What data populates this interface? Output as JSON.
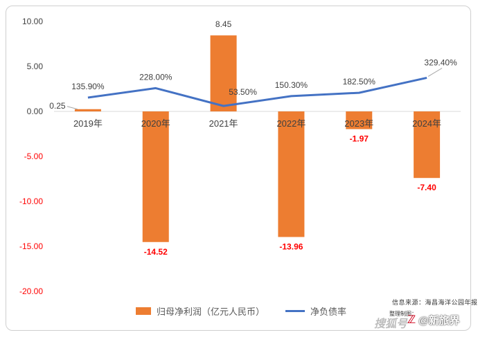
{
  "chart_data": {
    "type": "bar",
    "categories": [
      "2019年",
      "2020年",
      "2021年",
      "2022年",
      "2023年",
      "2024年"
    ],
    "ylim": [
      -20,
      10
    ],
    "yticks": [
      "10.00",
      "5.00",
      "0.00",
      "-5.00",
      "-10.00",
      "-15.00",
      "-20.00"
    ],
    "series": [
      {
        "name": "归母净利润（亿元人民币）",
        "type": "bar",
        "color": "#ED7D31",
        "values": [
          0.25,
          -14.52,
          8.45,
          -13.96,
          -1.97,
          -7.4
        ],
        "labels": [
          "0.25",
          "-14.52",
          "8.45",
          "-13.96",
          "-1.97",
          "-7.40"
        ]
      },
      {
        "name": "净负债率",
        "type": "line",
        "color": "#4472C4",
        "values": [
          135.9,
          228.0,
          53.5,
          150.3,
          182.5,
          329.4
        ],
        "labels": [
          "135.90%",
          "228.00%",
          "53.50%",
          "150.30%",
          "182.50%",
          "329.40%"
        ]
      }
    ],
    "colors": {
      "positive_text": "#404040",
      "negative_text": "#FF0000"
    },
    "grid": false,
    "legend_position": "bottom"
  },
  "source_text": "信息来源：海昌海洋公园年报",
  "watermark": {
    "editor": "整理制图：",
    "logo": "搜狐号",
    "brand": "@新旅界",
    "mark": "新旅界"
  }
}
